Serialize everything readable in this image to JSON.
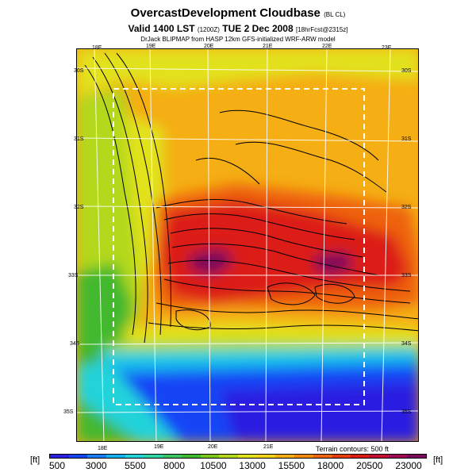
{
  "titles": {
    "main": "OvercastDevelopment Cloudbase",
    "main_suffix": "(BL CL)",
    "valid": "Valid 1400 LST",
    "valid_code": "(1200Z)",
    "valid_date": "TUE 2 Dec 2008",
    "valid_suffix": "[18hrFcst@2315z]",
    "credit": "DrJack BLIPMAP from HASP 12km GFS-initialized WRF-ARW model"
  },
  "terrain_note": "Terrain contours: 500 ft",
  "units": {
    "left": "[ft]",
    "right": "[ft]"
  },
  "grid_labels": {
    "top": [
      "18E",
      "19E",
      "20E",
      "21E",
      "22E",
      "23E"
    ],
    "bottom": [
      "18E",
      "19E",
      "20E",
      "21E"
    ],
    "left": [
      "30S",
      "31S",
      "32S",
      "33S",
      "34S",
      "35S"
    ],
    "right": [
      "30S",
      "31S",
      "32S",
      "33S",
      "34S",
      "35S"
    ]
  },
  "colorbar": {
    "labels": [
      "500",
      "3000",
      "5500",
      "8000",
      "10500",
      "13000",
      "15500",
      "18000",
      "20500",
      "23000"
    ],
    "colors": [
      "#2a1fe0",
      "#1445f5",
      "#1a7cf5",
      "#17b0f0",
      "#22d3da",
      "#33d3a8",
      "#3cc460",
      "#42b82e",
      "#7ac81e",
      "#b3d81c",
      "#e2e21c",
      "#f3d21a",
      "#f5ae14",
      "#f28a12",
      "#ee6210",
      "#e73c10",
      "#dc1c14",
      "#c41030",
      "#a00c54",
      "#7a0a5c"
    ]
  },
  "map_colors": {
    "purple": "#7a0a5c",
    "red": "#dc1c14",
    "orange_red": "#ee6210",
    "orange": "#f5ae14",
    "yellow": "#e2e21c",
    "yellow_green": "#b3d81c",
    "green": "#42b82e",
    "teal": "#22d3da",
    "cyan": "#17b0f0",
    "blue": "#1445f5",
    "deep_blue": "#2a1fe0"
  }
}
